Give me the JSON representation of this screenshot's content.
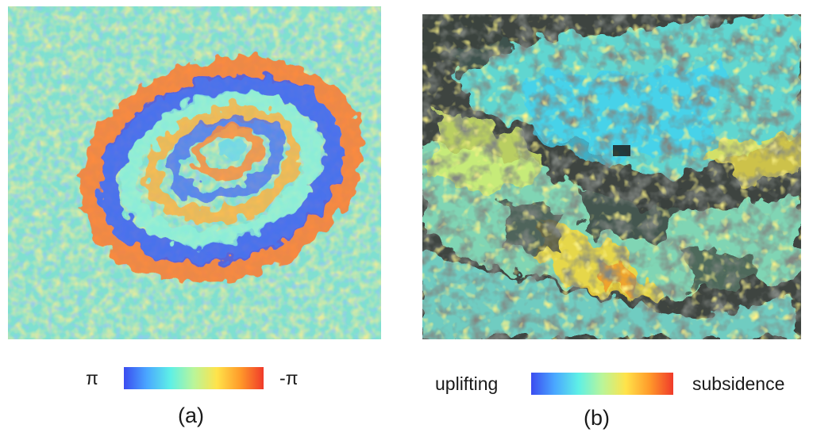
{
  "panel_a": {
    "image": "interferogram-phase-map",
    "colorbar": {
      "left_label": "π",
      "right_label": "-π",
      "colors": [
        "#3b4cf0",
        "#4aa8ff",
        "#5ef0e6",
        "#b9f59a",
        "#ffe34a",
        "#ff9a2a",
        "#f03a2a"
      ]
    },
    "caption": "(a)"
  },
  "panel_b": {
    "image": "deformation-map-over-satellite",
    "colorbar": {
      "left_label": "uplifting",
      "right_label": "subsidence",
      "colors": [
        "#3b4cf0",
        "#4aa8ff",
        "#5ef0e6",
        "#b9f59a",
        "#ffe34a",
        "#ff9a2a",
        "#f03a2a"
      ]
    },
    "caption": "(b)"
  }
}
